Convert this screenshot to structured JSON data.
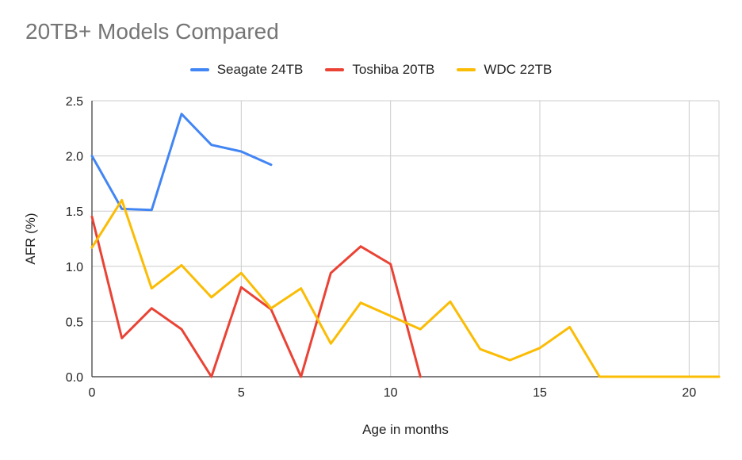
{
  "chart_data": {
    "type": "line",
    "title": "20TB+ Models Compared",
    "xlabel": "Age in months",
    "ylabel": "AFR (%)",
    "xlim": [
      0,
      21
    ],
    "ylim": [
      0,
      2.5
    ],
    "x_ticks": [
      0,
      5,
      10,
      15,
      20
    ],
    "x_tick_labels": [
      "0",
      "5",
      "10",
      "15",
      "20"
    ],
    "y_ticks": [
      0,
      0.5,
      1.0,
      1.5,
      2.0,
      2.5
    ],
    "y_tick_labels": [
      "0.0",
      "0.5",
      "1.0",
      "1.5",
      "2.0",
      "2.5"
    ],
    "grid": true,
    "legend_position": "top-center",
    "series": [
      {
        "name": "Seagate 24TB",
        "color": "#4285f4",
        "x": [
          0,
          1,
          2,
          3,
          4,
          5,
          6
        ],
        "values": [
          2.0,
          1.52,
          1.51,
          2.38,
          2.1,
          2.04,
          1.92
        ]
      },
      {
        "name": "Toshiba 20TB",
        "color": "#ea4335",
        "x": [
          0,
          1,
          2,
          3,
          4,
          5,
          6,
          7,
          8,
          9,
          10,
          11
        ],
        "values": [
          1.45,
          0.35,
          0.62,
          0.43,
          0.0,
          0.81,
          0.61,
          0.0,
          0.94,
          1.18,
          1.02,
          0.0
        ]
      },
      {
        "name": "WDC 22TB",
        "color": "#fbbc04",
        "x": [
          0,
          1,
          2,
          3,
          4,
          5,
          6,
          7,
          8,
          9,
          10,
          11,
          12,
          13,
          14,
          15,
          16,
          17,
          18,
          19,
          20,
          21
        ],
        "values": [
          1.17,
          1.6,
          0.8,
          1.01,
          0.72,
          0.94,
          0.62,
          0.8,
          0.3,
          0.67,
          0.55,
          0.43,
          0.68,
          0.25,
          0.15,
          0.26,
          0.45,
          0.0,
          0.0,
          0.0,
          0.0,
          0.0
        ]
      }
    ]
  }
}
